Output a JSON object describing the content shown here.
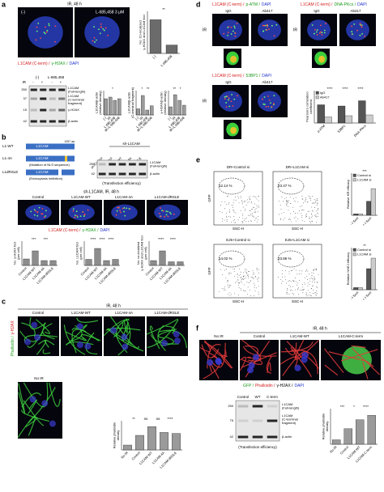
{
  "a": {
    "label": "a",
    "header": "IR, 48 h",
    "img_labels": [
      "(-)",
      "L-685,458 3 μM"
    ],
    "caption": [
      "L1CAM (C-term) /",
      "γ-H2AX /",
      "DAPI"
    ],
    "groups": [
      "(-)",
      "L-685,458"
    ],
    "ir": "IR",
    "lanes": [
      "-",
      "+",
      "-",
      "+"
    ],
    "kda": [
      "250",
      "37",
      "15",
      "42"
    ],
    "bands": [
      [
        "L1CAM",
        "(Full-length)"
      ],
      [
        "L1CAM",
        "(C-terminal",
        "fragment)"
      ],
      [
        "γ-H2AX"
      ],
      [
        "β-actin"
      ]
    ]
  },
  "b": {
    "label": "b",
    "constructs": [
      "L1-WT",
      "L1-4A",
      "L1dRSLE"
    ],
    "domain": "L1CAM",
    "length": "1257 aa",
    "notes": [
      "(Mutation of NLS sequence)",
      "(Endocytosis inhibition)"
    ],
    "blot_header": "sh-L1CAM",
    "lanes": [
      "sh-Control",
      "Control",
      "WT",
      "4A",
      "dRSLE"
    ],
    "kda": [
      "250",
      "42"
    ],
    "bands": [
      [
        "L1CAM",
        "(Full-length)"
      ],
      [
        "β-actin"
      ]
    ],
    "blot_note": "(Transfection efficiency)",
    "header": "sh-L1CAM, IR, 48 h",
    "img_labels": [
      "Control",
      "L1CAM-WT",
      "L1CAM-4A",
      "L1CAM-dRSLE"
    ],
    "caption": [
      "L1CAM (C-term) /",
      "γ-H2AX /",
      "DAPI"
    ]
  },
  "c": {
    "label": "c",
    "header": "IR, 48 h",
    "img_labels": [
      "Control",
      "L1CAM-WT",
      "L1CAM-4A",
      "L1CAM-dRSLE"
    ],
    "side": [
      "Phalloidin /",
      "γ-H2AX"
    ],
    "no_ir": "No IR"
  },
  "d": {
    "label": "d",
    "blocks": [
      {
        "caption": [
          "L1CAM (C-term) /",
          "p-ATM /",
          "DAPI"
        ],
        "cols": [
          "IgG",
          "Ab417"
        ],
        "row": "IR"
      },
      {
        "caption": [
          "L1CAM (C-term) /",
          "DNA-PKcs /",
          "DAPI"
        ],
        "cols": [
          "IgG",
          "Ab417"
        ],
        "row": "IR"
      },
      {
        "caption": [
          "L1CAM (C-term) /",
          "53BP1 /",
          "DAPI"
        ],
        "cols": [
          "IgG",
          "Ab417"
        ],
        "row": "IR"
      }
    ]
  },
  "e": {
    "label": "e",
    "plots": [
      {
        "title": "DR+Control si",
        "pct": "12.14 %"
      },
      {
        "title": "DR+L1CAM si",
        "pct": "23.47 %"
      },
      {
        "title": "EJ5+Control si",
        "pct": "14.02 %"
      },
      {
        "title": "EJ5+L1CAM si",
        "pct": "23.86 %"
      }
    ],
    "xlabel": "SSC-H",
    "ylabel": "GFP"
  },
  "f": {
    "label": "f",
    "header": "IR, 48 h",
    "img_labels": [
      "No IR",
      "Control",
      "L1CAM-WT",
      "L1CAM-C-term"
    ],
    "caption": [
      "GFP /",
      "Phalloidin /",
      "γ-H2AX /",
      "DAPI"
    ],
    "lanes": [
      "Control",
      "WT",
      "C-term"
    ],
    "kda": [
      "250",
      "75",
      "42"
    ],
    "bands": [
      [
        "L1CAM",
        "(Full-length)"
      ],
      [
        "L1CAM",
        "(C-terminal",
        "fragment)"
      ],
      [
        "β-actin"
      ]
    ],
    "blot_note": "(Transfection efficiency)"
  },
  "charts": [
    {
      "type": "bar",
      "ylabel": [
        "No. Co-localized",
        "γ-H2AX and L1CAM foci"
      ],
      "categories": [
        "(-)",
        "L-685,458"
      ],
      "series": [
        {
          "color": "#6b6b6b",
          "values": [
            24,
            6
          ]
        }
      ],
      "ylim": [
        0,
        30
      ],
      "sig": [
        "**"
      ]
    },
    {
      "type": "bar",
      "ylabel": [
        "L1CAM/β-actin",
        "(relative density)"
      ],
      "categories": [
        "(-)",
        "IR",
        "L-685,458",
        "IR+L-685,458"
      ],
      "series": [
        {
          "color": "#9a9a9a",
          "values": [
            1,
            1.1,
            0.9,
            1.0
          ]
        }
      ],
      "ylim": [
        0,
        1.5
      ],
      "sig": [
        "*"
      ]
    },
    {
      "type": "bar",
      "ylabel": [
        "L1CAM/β-actin",
        "(C-terminal fragment)"
      ],
      "categories": [
        "(-)",
        "IR",
        "L-685,458",
        "IR+L-685,458"
      ],
      "series": [
        {
          "color": "#9a9a9a",
          "values": [
            1,
            3.2,
            0.8,
            1.5
          ]
        }
      ],
      "ylim": [
        0,
        4
      ],
      "sig": [
        "*",
        "**"
      ]
    },
    {
      "type": "bar",
      "ylabel": [
        "γ-H2AX/β-actin",
        "(relative density)"
      ],
      "categories": [
        "(-)",
        "IR",
        "L-685,458",
        "IR+L-685,458"
      ],
      "series": [
        {
          "color": "#9a9a9a",
          "values": [
            1,
            2.5,
            1.8,
            1.2
          ]
        }
      ],
      "ylim": [
        0,
        3
      ],
      "sig": [
        "**",
        "*"
      ]
    },
    {
      "type": "bar",
      "ylabel": [
        "No. γ-H2AX foci",
        "(per cell)"
      ],
      "categories": [
        "Control",
        "L1CAM-WT",
        "L1CAM-4A",
        "L1CAM-dRSLE"
      ],
      "series": [
        {
          "color": "#8c8c8c",
          "values": [
            4,
            9,
            3,
            3
          ]
        }
      ],
      "ylim": [
        0,
        15
      ],
      "sig": [
        "***",
        "***"
      ]
    },
    {
      "type": "bar",
      "ylabel": [
        "No. L1CAM foci",
        "(per cell)"
      ],
      "categories": [
        "Control",
        "L1CAM-WT",
        "L1CAM-4A",
        "L1CAM-dRSLE"
      ],
      "series": [
        {
          "color": "#8c8c8c",
          "values": [
            5,
            14,
            4,
            5
          ]
        }
      ],
      "ylim": [
        0,
        20
      ],
      "sig": [
        "****",
        "****",
        "****"
      ]
    },
    {
      "type": "bar",
      "ylabel": [
        "No. co-localized",
        "γ-H2AX and L1CAM foci",
        "(per cell)"
      ],
      "categories": [
        "Control",
        "L1CAM-WT",
        "L1CAM-4A",
        "L1CAM-dRSLE"
      ],
      "series": [
        {
          "color": "#8c8c8c",
          "values": [
            2,
            6,
            1.5,
            1.5
          ]
        }
      ],
      "ylim": [
        0,
        10
      ],
      "sig": [
        "****",
        "****"
      ]
    },
    {
      "type": "bar",
      "ylabel": [
        "Relative phalloidin",
        "density"
      ],
      "categories": [
        "No IR",
        "Control",
        "L1CAM-WT",
        "L1CAM-4A",
        "L1CAM-dRSLE"
      ],
      "series": [
        {
          "color": "#9a9a9a",
          "values": [
            1,
            3,
            4.8,
            3.6,
            3.4
          ]
        }
      ],
      "ylim": [
        0,
        6
      ],
      "sig": [
        "**",
        "ns",
        "ns",
        "****"
      ]
    },
    {
      "type": "bar",
      "ylabel": [
        "Pearson's correlation",
        "coefficient"
      ],
      "categories": [
        "p-ATM",
        "53BP1",
        "DNA-PKcs"
      ],
      "series": [
        {
          "name": "IgG",
          "color": "#555555",
          "values": [
            0.45,
            0.42,
            0.55
          ]
        },
        {
          "name": "Ab417",
          "color": "#cccccc",
          "values": [
            0.15,
            0.18,
            0.2
          ]
        }
      ],
      "ylim": [
        0,
        0.8
      ],
      "sig": [
        "****",
        "****",
        "****"
      ]
    },
    {
      "type": "bar",
      "ylabel": [
        "Relative HR efficacy"
      ],
      "categories": [
        "- I-SceI",
        "+ I-SceI"
      ],
      "series": [
        {
          "name": "Control si",
          "color": "#555555",
          "values": [
            0.1,
            1.0
          ]
        },
        {
          "name": "L1CAM si",
          "color": "#cccccc",
          "values": [
            0.1,
            1.9
          ]
        }
      ],
      "ylim": [
        0,
        3
      ],
      "sig": [
        "***"
      ]
    },
    {
      "type": "bar",
      "ylabel": [
        "Relative NHEJ efficacy"
      ],
      "categories": [
        "- I-SceI",
        "+ I-SceI"
      ],
      "series": [
        {
          "name": "Control si",
          "color": "#555555",
          "values": [
            0.1,
            1.0
          ]
        },
        {
          "name": "L1CAM si",
          "color": "#cccccc",
          "values": [
            0.1,
            1.5
          ]
        }
      ],
      "ylim": [
        0,
        2
      ],
      "sig": [
        "**"
      ]
    },
    {
      "type": "bar",
      "ylabel": [
        "Relative phalloidin",
        "density"
      ],
      "categories": [
        "No IR",
        "Control",
        "L1CAM-WT",
        "L1CAM-C-term"
      ],
      "series": [
        {
          "color": "#9a9a9a",
          "values": [
            1,
            3.5,
            5.5,
            6.5
          ]
        }
      ],
      "ylim": [
        0,
        8
      ],
      "sig": [
        "***",
        "*",
        "****"
      ]
    }
  ]
}
